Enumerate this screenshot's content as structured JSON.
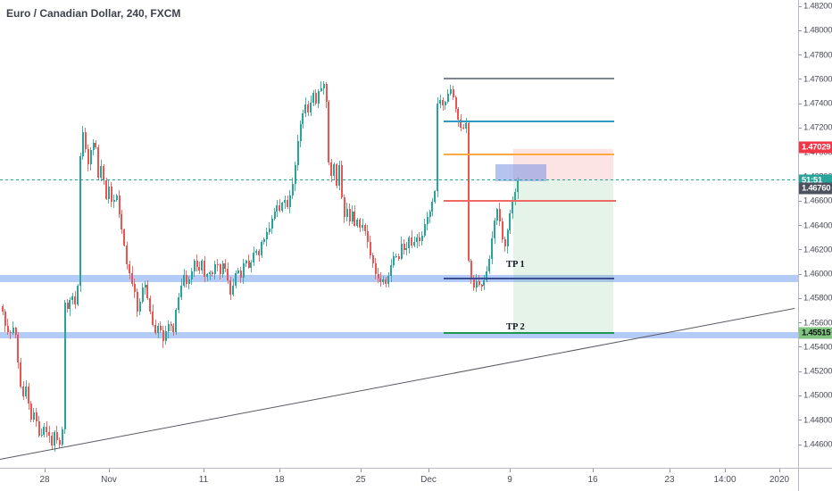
{
  "title": "Euro / Canadian Dollar, 240, FXCM",
  "colors": {
    "candle_up": "#26a69a",
    "candle_down": "#ef5350",
    "wick_up": "rgba(38,166,154,0.85)",
    "wick_down": "rgba(239,83,80,0.85)",
    "axis_text": "#4a4e59",
    "axis_border": "#b7bac2",
    "dotted_price_line": "#26a69a",
    "band_fill": "rgba(148,180,243,0.7)",
    "box_red": "rgba(242,95,92,0.17)",
    "box_green": "rgba(101,178,120,0.16)",
    "box_blue": "rgba(106,138,224,0.5)",
    "trendline": "#565a63"
  },
  "price_axis": {
    "ticks": [
      "1.48200",
      "1.48000",
      "1.47800",
      "1.47600",
      "1.47400",
      "1.47200",
      "1.47000",
      "1.46800",
      "1.46600",
      "1.46400",
      "1.46200",
      "1.46000",
      "1.45800",
      "1.45600",
      "1.45400",
      "1.45200",
      "1.45000",
      "1.44800",
      "1.44600"
    ],
    "badges": [
      {
        "name": "stop-price-badge",
        "text": "1.47029",
        "bg": "#f23645",
        "fg": "#ffffff",
        "price": 1.47029,
        "dy": -2
      },
      {
        "name": "countdown-badge",
        "text": "51:51",
        "bg": "#26a69a",
        "fg": "#ffffff",
        "price": 1.46772,
        "dy": 0
      },
      {
        "name": "level-price-badge",
        "text": "1.46760",
        "bg": "#4c525e",
        "fg": "#ffffff",
        "price": 1.4676,
        "dy": 8
      },
      {
        "name": "tp2-price-badge",
        "text": "1.45515",
        "bg": "#7ec57d",
        "fg": "#0f1117",
        "price": 1.45515,
        "dy": 0
      }
    ]
  },
  "time_axis": {
    "labels": [
      {
        "text": "28",
        "x": 50
      },
      {
        "text": "Nov",
        "x": 122
      },
      {
        "text": "11",
        "x": 228
      },
      {
        "text": "18",
        "x": 313
      },
      {
        "text": "25",
        "x": 404
      },
      {
        "text": "Dec",
        "x": 480
      },
      {
        "text": "9",
        "x": 571
      },
      {
        "text": "16",
        "x": 664
      },
      {
        "text": "23",
        "x": 750
      },
      {
        "text": "14:00",
        "x": 812
      },
      {
        "text": "2020",
        "x": 873
      }
    ]
  },
  "chart_data": {
    "type": "candlestick",
    "symbol": "Euro / Canadian Dollar",
    "timeframe": "240",
    "exchange": "FXCM",
    "ylim": [
      1.446,
      1.482
    ],
    "grid": false,
    "y_map": {
      "price_top": 1.482,
      "y_top": 7,
      "price_bottom": 1.446,
      "y_bottom": 498
    },
    "current_price": 1.46772,
    "countdown": "51:51",
    "candles": {
      "x_start": 3,
      "x_end": 580.2,
      "pitch": 2.9,
      "body_width": 2,
      "noise": 0.00042,
      "wick": 0.0005
    },
    "price_path": [
      [
        3,
        1.4568
      ],
      [
        6,
        1.4559
      ],
      [
        10,
        1.4548
      ],
      [
        14,
        1.4556
      ],
      [
        18,
        1.4549
      ],
      [
        22,
        1.451
      ],
      [
        26,
        1.4498
      ],
      [
        30,
        1.4508
      ],
      [
        34,
        1.4478
      ],
      [
        38,
        1.4488
      ],
      [
        42,
        1.4472
      ],
      [
        46,
        1.4465
      ],
      [
        50,
        1.4478
      ],
      [
        54,
        1.4468
      ],
      [
        58,
        1.446
      ],
      [
        62,
        1.4472
      ],
      [
        66,
        1.4458
      ],
      [
        70,
        1.4472
      ],
      [
        71.5,
        1.4476
      ],
      [
        72.5,
        1.4578
      ],
      [
        76,
        1.457
      ],
      [
        80,
        1.4584
      ],
      [
        84,
        1.4576
      ],
      [
        87,
        1.4588
      ],
      [
        88.5,
        1.4655
      ],
      [
        90.5,
        1.4712
      ],
      [
        94,
        1.4718
      ],
      [
        98,
        1.4688
      ],
      [
        102,
        1.4702
      ],
      [
        106,
        1.4714
      ],
      [
        110,
        1.468
      ],
      [
        114,
        1.4692
      ],
      [
        118,
        1.466
      ],
      [
        122,
        1.4672
      ],
      [
        126,
        1.4655
      ],
      [
        130,
        1.4668
      ],
      [
        134,
        1.4645
      ],
      [
        138,
        1.463
      ],
      [
        142,
        1.461
      ],
      [
        146,
        1.4598
      ],
      [
        150,
        1.459
      ],
      [
        154,
        1.457
      ],
      [
        158,
        1.4582
      ],
      [
        162,
        1.4594
      ],
      [
        166,
        1.458
      ],
      [
        170,
        1.4562
      ],
      [
        174,
        1.455
      ],
      [
        178,
        1.456
      ],
      [
        182,
        1.4545
      ],
      [
        186,
        1.4552
      ],
      [
        190,
        1.4562
      ],
      [
        194,
        1.4548
      ],
      [
        198,
        1.4575
      ],
      [
        202,
        1.4588
      ],
      [
        206,
        1.4598
      ],
      [
        210,
        1.4588
      ],
      [
        214,
        1.4602
      ],
      [
        218,
        1.4614
      ],
      [
        222,
        1.46
      ],
      [
        226,
        1.4612
      ],
      [
        230,
        1.4592
      ],
      [
        234,
        1.4604
      ],
      [
        238,
        1.4598
      ],
      [
        242,
        1.461
      ],
      [
        246,
        1.46
      ],
      [
        250,
        1.4612
      ],
      [
        254,
        1.4598
      ],
      [
        258,
        1.4582
      ],
      [
        262,
        1.4596
      ],
      [
        266,
        1.4604
      ],
      [
        270,
        1.4598
      ],
      [
        274,
        1.4612
      ],
      [
        278,
        1.4604
      ],
      [
        282,
        1.4612
      ],
      [
        286,
        1.462
      ],
      [
        290,
        1.4616
      ],
      [
        294,
        1.4628
      ],
      [
        298,
        1.4632
      ],
      [
        302,
        1.464
      ],
      [
        306,
        1.4648
      ],
      [
        310,
        1.4658
      ],
      [
        314,
        1.4652
      ],
      [
        318,
        1.4662
      ],
      [
        322,
        1.4656
      ],
      [
        326,
        1.467
      ],
      [
        330,
        1.4682
      ],
      [
        334,
        1.4714
      ],
      [
        338,
        1.4728
      ],
      [
        342,
        1.474
      ],
      [
        346,
        1.4732
      ],
      [
        350,
        1.475
      ],
      [
        354,
        1.4742
      ],
      [
        358,
        1.4752
      ],
      [
        362,
        1.4758
      ],
      [
        365,
        1.4752
      ],
      [
        368,
        1.4694
      ],
      [
        371,
        1.4678
      ],
      [
        374,
        1.469
      ],
      [
        377,
        1.4672
      ],
      [
        380,
        1.4688
      ],
      [
        383,
        1.466
      ],
      [
        386,
        1.4646
      ],
      [
        389,
        1.4656
      ],
      [
        392,
        1.464
      ],
      [
        395,
        1.4652
      ],
      [
        398,
        1.4638
      ],
      [
        401,
        1.4648
      ],
      [
        404,
        1.4636
      ],
      [
        407,
        1.4645
      ],
      [
        410,
        1.463
      ],
      [
        413,
        1.4622
      ],
      [
        416,
        1.4612
      ],
      [
        419,
        1.4606
      ],
      [
        422,
        1.4598
      ],
      [
        425,
        1.4592
      ],
      [
        428,
        1.46
      ],
      [
        431,
        1.459
      ],
      [
        434,
        1.4596
      ],
      [
        438,
        1.4608
      ],
      [
        442,
        1.4618
      ],
      [
        446,
        1.4612
      ],
      [
        450,
        1.4626
      ],
      [
        454,
        1.4618
      ],
      [
        458,
        1.463
      ],
      [
        462,
        1.4622
      ],
      [
        466,
        1.4634
      ],
      [
        470,
        1.4626
      ],
      [
        474,
        1.4636
      ],
      [
        478,
        1.4646
      ],
      [
        482,
        1.4654
      ],
      [
        486,
        1.4666
      ],
      [
        488,
        1.4672
      ],
      [
        489.5,
        1.4738
      ],
      [
        493,
        1.4744
      ],
      [
        497,
        1.4736
      ],
      [
        501,
        1.4748
      ],
      [
        505,
        1.4752
      ],
      [
        509,
        1.474
      ],
      [
        513,
        1.473
      ],
      [
        517,
        1.4716
      ],
      [
        521,
        1.4724
      ],
      [
        522.5,
        1.4722
      ],
      [
        523.5,
        1.462
      ],
      [
        526,
        1.4605
      ],
      [
        529,
        1.4595
      ],
      [
        532,
        1.4588
      ],
      [
        535,
        1.4598
      ],
      [
        538,
        1.4586
      ],
      [
        541,
        1.4592
      ],
      [
        544,
        1.4598
      ],
      [
        547,
        1.4608
      ],
      [
        550,
        1.4622
      ],
      [
        553,
        1.4638
      ],
      [
        556,
        1.4655
      ],
      [
        559,
        1.4648
      ],
      [
        562,
        1.463
      ],
      [
        565,
        1.4618
      ],
      [
        568,
        1.4632
      ],
      [
        571,
        1.4648
      ],
      [
        574,
        1.466
      ],
      [
        577,
        1.4668
      ],
      [
        580.5,
        1.46772
      ]
    ],
    "levels": [
      {
        "name": "resistance-line-gray",
        "price": 1.47605,
        "x1": 497,
        "x2": 688,
        "color": "#808691",
        "width": 2
      },
      {
        "name": "resistance-line-blue",
        "price": 1.47254,
        "x1": 497,
        "x2": 688,
        "color": "#2d9bc1",
        "width": 2
      },
      {
        "name": "supply-line-orange",
        "price": 1.46982,
        "x1": 497,
        "x2": 688,
        "color": "#ffa940",
        "width": 2
      },
      {
        "name": "support-line-red",
        "price": 1.46601,
        "x1": 497,
        "x2": 690,
        "color": "#ef6a62",
        "width": 2
      },
      {
        "name": "tp1-line-navy",
        "price": 1.45963,
        "x1": 497,
        "x2": 688,
        "color": "#3a5295",
        "width": 1.5
      },
      {
        "name": "tp2-line-green",
        "price": 1.45515,
        "x1": 497,
        "x2": 688,
        "color": "#209653",
        "width": 1.5
      }
    ],
    "zones": [
      {
        "name": "support-zone-1",
        "price_top": 1.4599,
        "price_bottom": 1.45935
      },
      {
        "name": "support-zone-2",
        "price_top": 1.45525,
        "price_bottom": 1.45472
      }
    ],
    "boxes": [
      {
        "name": "risk-box",
        "x1": 575,
        "x2": 687,
        "price_top": 1.47029,
        "price_bottom": 1.46772,
        "fill": "box_red"
      },
      {
        "name": "reward-box",
        "x1": 575,
        "x2": 687,
        "price_top": 1.46772,
        "price_bottom": 1.45515,
        "fill": "box_green"
      },
      {
        "name": "supply-box",
        "x1": 555,
        "x2": 612,
        "price_top": 1.469,
        "price_bottom": 1.4676,
        "fill": "box_blue"
      }
    ],
    "trendline": {
      "x1": 0,
      "price1": 1.44483,
      "x2": 890,
      "price2": 1.45722
    },
    "annotations": [
      {
        "name": "tp1-label",
        "text": "TP 1",
        "x": 567,
        "y": 291
      },
      {
        "name": "tp2-label",
        "text": "TP 2",
        "x": 567,
        "y": 361
      }
    ]
  }
}
